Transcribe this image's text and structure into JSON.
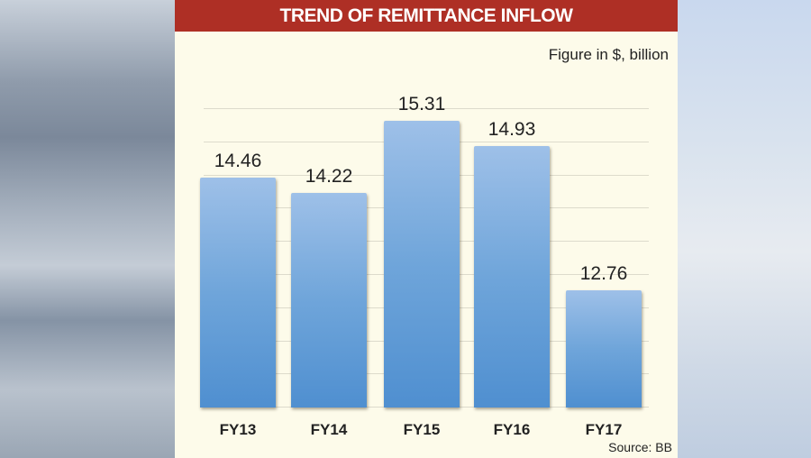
{
  "header": {
    "title": "TREND OF REMITTANCE INFLOW"
  },
  "unit_note": "Figure in $, billion",
  "source": "Source: BB",
  "colors": {
    "header_bg": "#ae2f25",
    "card_bg": "#fdfbea",
    "bar_top": "#9ec0e8",
    "bar_bottom": "#4f8fd0"
  },
  "chart_data": {
    "type": "bar",
    "title": "TREND OF REMITTANCE INFLOW",
    "subtitle": "Figure in $, billion",
    "categories": [
      "FY13",
      "FY14",
      "FY15",
      "FY16",
      "FY17"
    ],
    "values": [
      14.46,
      14.22,
      15.31,
      14.93,
      12.76
    ],
    "labels": [
      "14.46",
      "14.22",
      "15.31",
      "14.93",
      "12.76"
    ],
    "xlabel": "",
    "ylabel": "$ billion",
    "grid": true,
    "legend": null,
    "annotations": [
      "Source: BB"
    ]
  }
}
